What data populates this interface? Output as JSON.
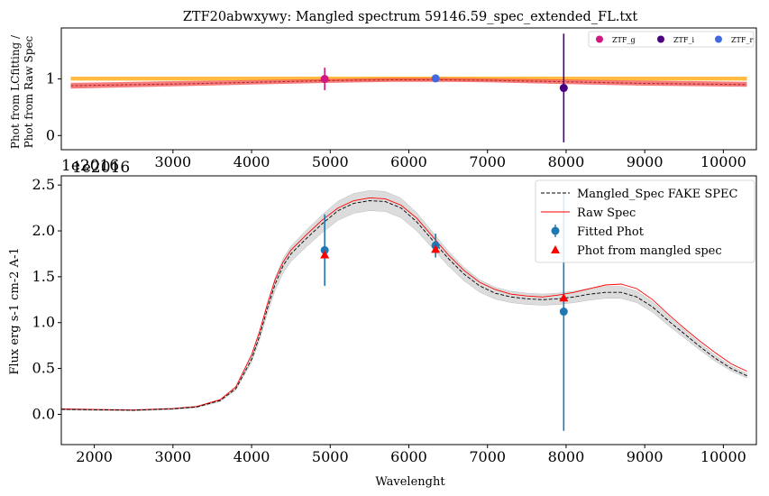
{
  "chart_data": [
    {
      "type": "scatter",
      "title": "ZTF20abwxywy: Mangled spectrum 59146.59_spec_extended_FL.txt",
      "ylabel_lines": [
        "Phot from LCfitting /",
        "Phot from Raw Spec"
      ],
      "xlim": [
        1580,
        10420
      ],
      "ylim": [
        -0.25,
        1.9
      ],
      "xticks": [
        "3000",
        "4000",
        "5000",
        "6000",
        "7000",
        "8000",
        "9000",
        "10000"
      ],
      "yticks": [
        "0",
        "1"
      ],
      "offset_texts": [
        "1e2016",
        "1e2016"
      ],
      "bands": [
        {
          "color": "#ffa500",
          "opacity": 0.75,
          "lower": [
            [
              1700,
              0.97
            ],
            [
              10300,
              0.97
            ]
          ],
          "upper": [
            [
              1700,
              1.04
            ],
            [
              10300,
              1.04
            ]
          ]
        },
        {
          "color": "#f05050",
          "opacity": 0.75,
          "lower": [
            [
              1700,
              0.83
            ],
            [
              3000,
              0.87
            ],
            [
              4000,
              0.9
            ],
            [
              5000,
              0.93
            ],
            [
              5800,
              0.95
            ],
            [
              6400,
              0.95
            ],
            [
              7000,
              0.94
            ],
            [
              8000,
              0.91
            ],
            [
              9000,
              0.88
            ],
            [
              10300,
              0.86
            ]
          ],
          "upper": [
            [
              1700,
              0.93
            ],
            [
              3000,
              0.96
            ],
            [
              4000,
              0.98
            ],
            [
              5000,
              1.0
            ],
            [
              5800,
              1.02
            ],
            [
              6400,
              1.02
            ],
            [
              7000,
              1.01
            ],
            [
              8000,
              0.99
            ],
            [
              9000,
              0.97
            ],
            [
              10300,
              0.95
            ]
          ]
        }
      ],
      "ratio_line": {
        "color": "#b22222",
        "dash": "3,2",
        "points": [
          [
            1700,
            0.88
          ],
          [
            3000,
            0.91
          ],
          [
            4000,
            0.94
          ],
          [
            5000,
            0.97
          ],
          [
            5800,
            0.985
          ],
          [
            6400,
            0.985
          ],
          [
            7000,
            0.975
          ],
          [
            8000,
            0.95
          ],
          [
            9000,
            0.92
          ],
          [
            10300,
            0.9
          ]
        ]
      },
      "points": [
        {
          "name": "ZTF_g",
          "x": 4930,
          "y": 1.0,
          "err": 0.2,
          "color": "#d01880"
        },
        {
          "name": "ZTF_i",
          "x": 7970,
          "y": 0.84,
          "err": 0.96,
          "color": "#4b0082"
        },
        {
          "name": "ZTF_r",
          "x": 6340,
          "y": 1.01,
          "err": 0.04,
          "color": "#4169e1"
        }
      ],
      "legend": {
        "placement": "top-right",
        "entries": [
          "ZTF_g",
          "ZTF_i",
          "ZTF_r"
        ]
      }
    },
    {
      "type": "line",
      "xlabel": "Wavelenght",
      "ylabel": "Flux erg s-1 cm-2 A-1",
      "xlim": [
        1580,
        10420
      ],
      "ylim": [
        -0.33,
        2.6
      ],
      "xticks": [
        "2000",
        "3000",
        "4000",
        "5000",
        "6000",
        "7000",
        "8000",
        "9000",
        "10000"
      ],
      "yticks": [
        "0.0",
        "0.5",
        "1.0",
        "1.5",
        "2.0",
        "2.5"
      ],
      "series": [
        {
          "name": "Mangled_Spec FAKE SPEC",
          "color": "#000000",
          "dash": "4,2",
          "width": 0.9,
          "points": [
            [
              1580,
              0.055
            ],
            [
              2000,
              0.05
            ],
            [
              2500,
              0.045
            ],
            [
              3000,
              0.06
            ],
            [
              3300,
              0.08
            ],
            [
              3600,
              0.15
            ],
            [
              3800,
              0.28
            ],
            [
              4000,
              0.6
            ],
            [
              4100,
              0.85
            ],
            [
              4200,
              1.15
            ],
            [
              4300,
              1.42
            ],
            [
              4400,
              1.62
            ],
            [
              4500,
              1.75
            ],
            [
              4700,
              1.92
            ],
            [
              4900,
              2.08
            ],
            [
              5100,
              2.22
            ],
            [
              5300,
              2.3
            ],
            [
              5500,
              2.33
            ],
            [
              5700,
              2.32
            ],
            [
              5900,
              2.25
            ],
            [
              6100,
              2.1
            ],
            [
              6300,
              1.9
            ],
            [
              6500,
              1.7
            ],
            [
              6700,
              1.53
            ],
            [
              6900,
              1.4
            ],
            [
              7100,
              1.32
            ],
            [
              7300,
              1.28
            ],
            [
              7500,
              1.26
            ],
            [
              7700,
              1.25
            ],
            [
              7900,
              1.26
            ],
            [
              8100,
              1.28
            ],
            [
              8300,
              1.31
            ],
            [
              8500,
              1.33
            ],
            [
              8700,
              1.33
            ],
            [
              8900,
              1.28
            ],
            [
              9100,
              1.17
            ],
            [
              9300,
              1.02
            ],
            [
              9500,
              0.88
            ],
            [
              9700,
              0.74
            ],
            [
              9900,
              0.61
            ],
            [
              10100,
              0.5
            ],
            [
              10300,
              0.42
            ]
          ]
        },
        {
          "name": "Raw Spec",
          "color": "#ff0000",
          "dash": "",
          "width": 0.9,
          "points": [
            [
              1580,
              0.058
            ],
            [
              2000,
              0.052
            ],
            [
              2500,
              0.047
            ],
            [
              3000,
              0.062
            ],
            [
              3300,
              0.085
            ],
            [
              3600,
              0.16
            ],
            [
              3800,
              0.3
            ],
            [
              4000,
              0.65
            ],
            [
              4100,
              0.9
            ],
            [
              4200,
              1.2
            ],
            [
              4300,
              1.47
            ],
            [
              4400,
              1.66
            ],
            [
              4500,
              1.79
            ],
            [
              4700,
              1.96
            ],
            [
              4900,
              2.12
            ],
            [
              5100,
              2.25
            ],
            [
              5300,
              2.33
            ],
            [
              5500,
              2.36
            ],
            [
              5700,
              2.35
            ],
            [
              5900,
              2.28
            ],
            [
              6100,
              2.14
            ],
            [
              6300,
              1.94
            ],
            [
              6500,
              1.74
            ],
            [
              6700,
              1.57
            ],
            [
              6900,
              1.44
            ],
            [
              7100,
              1.36
            ],
            [
              7300,
              1.31
            ],
            [
              7500,
              1.29
            ],
            [
              7700,
              1.28
            ],
            [
              7900,
              1.3
            ],
            [
              8100,
              1.33
            ],
            [
              8300,
              1.37
            ],
            [
              8500,
              1.41
            ],
            [
              8700,
              1.42
            ],
            [
              8900,
              1.37
            ],
            [
              9100,
              1.25
            ],
            [
              9300,
              1.09
            ],
            [
              9500,
              0.94
            ],
            [
              9700,
              0.8
            ],
            [
              9900,
              0.67
            ],
            [
              10100,
              0.55
            ],
            [
              10300,
              0.47
            ]
          ]
        }
      ],
      "band": {
        "color": "#c0c0c0",
        "opacity": 0.55,
        "fraction": 0.045
      },
      "fitted_phot": {
        "name": "Fitted Phot",
        "color": "#1f77b4",
        "points": [
          {
            "x": 4930,
            "y": 1.79,
            "err": 0.39
          },
          {
            "x": 6340,
            "y": 1.84,
            "err": 0.13
          },
          {
            "x": 7970,
            "y": 1.12,
            "err": 1.3
          }
        ]
      },
      "mangled_phot": {
        "name": "Phot from mangled spec",
        "color": "#ff0000",
        "points": [
          {
            "x": 4930,
            "y": 1.74
          },
          {
            "x": 6340,
            "y": 1.8
          },
          {
            "x": 7970,
            "y": 1.27
          }
        ]
      },
      "legend": {
        "placement": "top-right",
        "entries": [
          "Mangled_Spec FAKE SPEC",
          "Raw Spec",
          "Fitted Phot",
          "Phot from mangled spec"
        ]
      }
    }
  ]
}
